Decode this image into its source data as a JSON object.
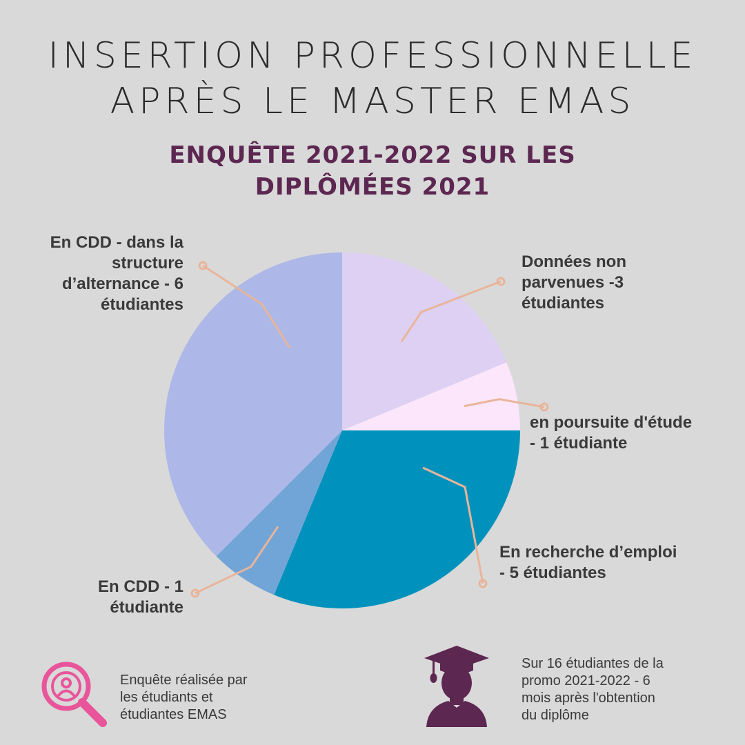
{
  "title": {
    "line1": "INSERTION PROFESSIONNELLE",
    "line2": "APRÈS LE MASTER EMAS"
  },
  "subtitle": {
    "line1": "ENQUÊTE 2021-2022 SUR LES",
    "line2": "DIPLÔMÉES 2021"
  },
  "colors": {
    "leader": "#e8b59a",
    "subtitle": "#5c2751",
    "search_icon": "#e8559a",
    "graduate_icon": "#5c2751"
  },
  "chart_data": {
    "type": "pie",
    "unit": "étudiantes",
    "slices": [
      {
        "key": "non_parvenues",
        "value": 3,
        "color": "#ddd0f3",
        "label_lines": [
          "Données non",
          "parvenues -3",
          "étudiantes"
        ]
      },
      {
        "key": "poursuite",
        "value": 1,
        "color": "#fbe6fb",
        "label_lines": [
          "en poursuite d'étude",
          "- 1 étudiante"
        ]
      },
      {
        "key": "recherche",
        "value": 5,
        "color": "#0092bc",
        "label_lines": [
          "En recherche d’emploi",
          "- 5 étudiantes"
        ]
      },
      {
        "key": "cdd",
        "value": 1,
        "color": "#72a5d7",
        "label_lines": [
          "En CDD - 1",
          "étudiante"
        ]
      },
      {
        "key": "cdd_alternance",
        "value": 6,
        "color": "#adb8e8",
        "label_lines": [
          "En CDD - dans la",
          "structure",
          "d’alternance - 6",
          "étudiantes"
        ]
      }
    ]
  },
  "footer": {
    "left_lines": [
      "Enquête réalisée par",
      "les étudiants et",
      "étudiantes EMAS"
    ],
    "right_lines": [
      "Sur 16 étudiantes de la",
      "promo 2021-2022 - 6",
      "mois après l'obtention",
      "du diplôme"
    ]
  }
}
